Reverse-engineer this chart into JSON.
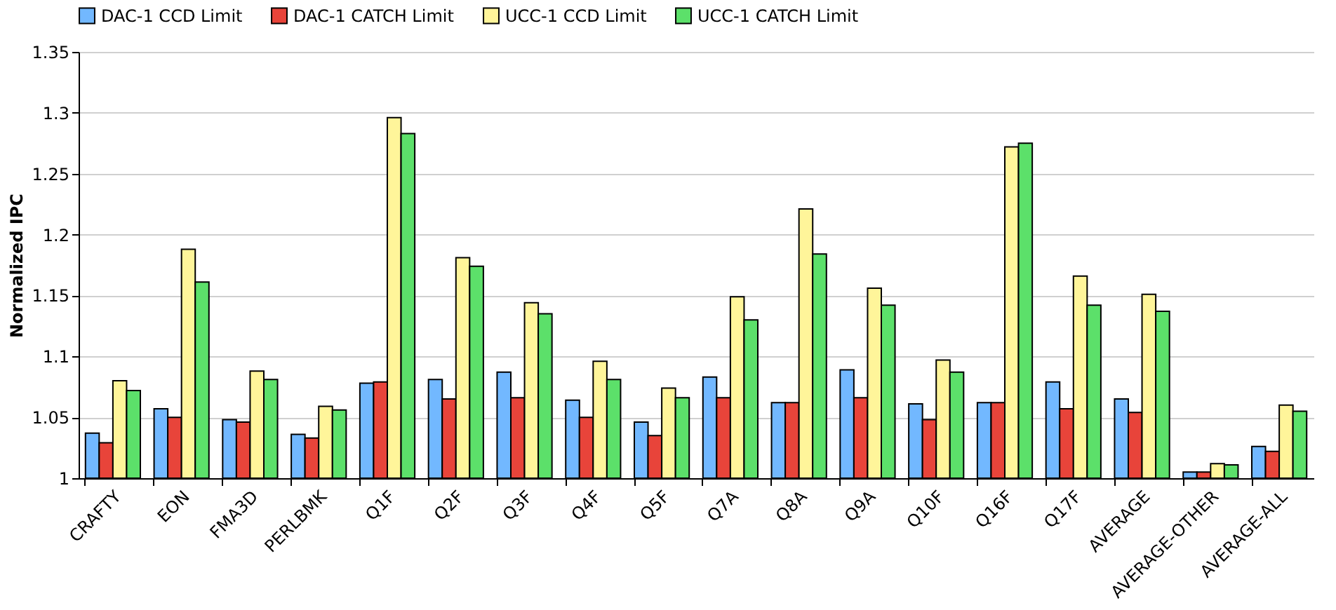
{
  "chart_data": {
    "type": "bar",
    "ylabel": "Normalized IPC",
    "categories": [
      "CRAFTY",
      "EON",
      "FMA3D",
      "PERLBMK",
      "Q1F",
      "Q2F",
      "Q3F",
      "Q4F",
      "Q5F",
      "Q7A",
      "Q8A",
      "Q9A",
      "Q10F",
      "Q16F",
      "Q17F",
      "AVERAGE",
      "AVERAGE-OTHER",
      "AVERAGE-ALL"
    ],
    "series": [
      {
        "name": "DAC-1 CCD Limit",
        "color": "#72b8ff",
        "values": [
          1.037,
          1.057,
          1.048,
          1.036,
          1.078,
          1.081,
          1.087,
          1.064,
          1.046,
          1.083,
          1.062,
          1.089,
          1.061,
          1.062,
          1.079,
          1.065,
          1.005,
          1.026
        ]
      },
      {
        "name": "DAC-1 CATCH Limit",
        "color": "#e8443a",
        "values": [
          1.029,
          1.05,
          1.046,
          1.033,
          1.079,
          1.065,
          1.066,
          1.05,
          1.035,
          1.066,
          1.062,
          1.066,
          1.048,
          1.062,
          1.057,
          1.054,
          1.005,
          1.022
        ]
      },
      {
        "name": "UCC-1 CCD Limit",
        "color": "#fff59a",
        "values": [
          1.08,
          1.188,
          1.088,
          1.059,
          1.296,
          1.181,
          1.144,
          1.096,
          1.074,
          1.149,
          1.221,
          1.156,
          1.097,
          1.272,
          1.166,
          1.151,
          1.012,
          1.06
        ]
      },
      {
        "name": "UCC-1 CATCH Limit",
        "color": "#5ce06a",
        "values": [
          1.072,
          1.161,
          1.081,
          1.056,
          1.283,
          1.174,
          1.135,
          1.081,
          1.066,
          1.13,
          1.184,
          1.142,
          1.087,
          1.275,
          1.142,
          1.137,
          1.011,
          1.055
        ]
      }
    ],
    "ylim": [
      1,
      1.35
    ],
    "yticks": [
      1,
      1.05,
      1.1,
      1.15,
      1.2,
      1.25,
      1.3,
      1.35
    ],
    "grid": "y",
    "legend": "top"
  }
}
